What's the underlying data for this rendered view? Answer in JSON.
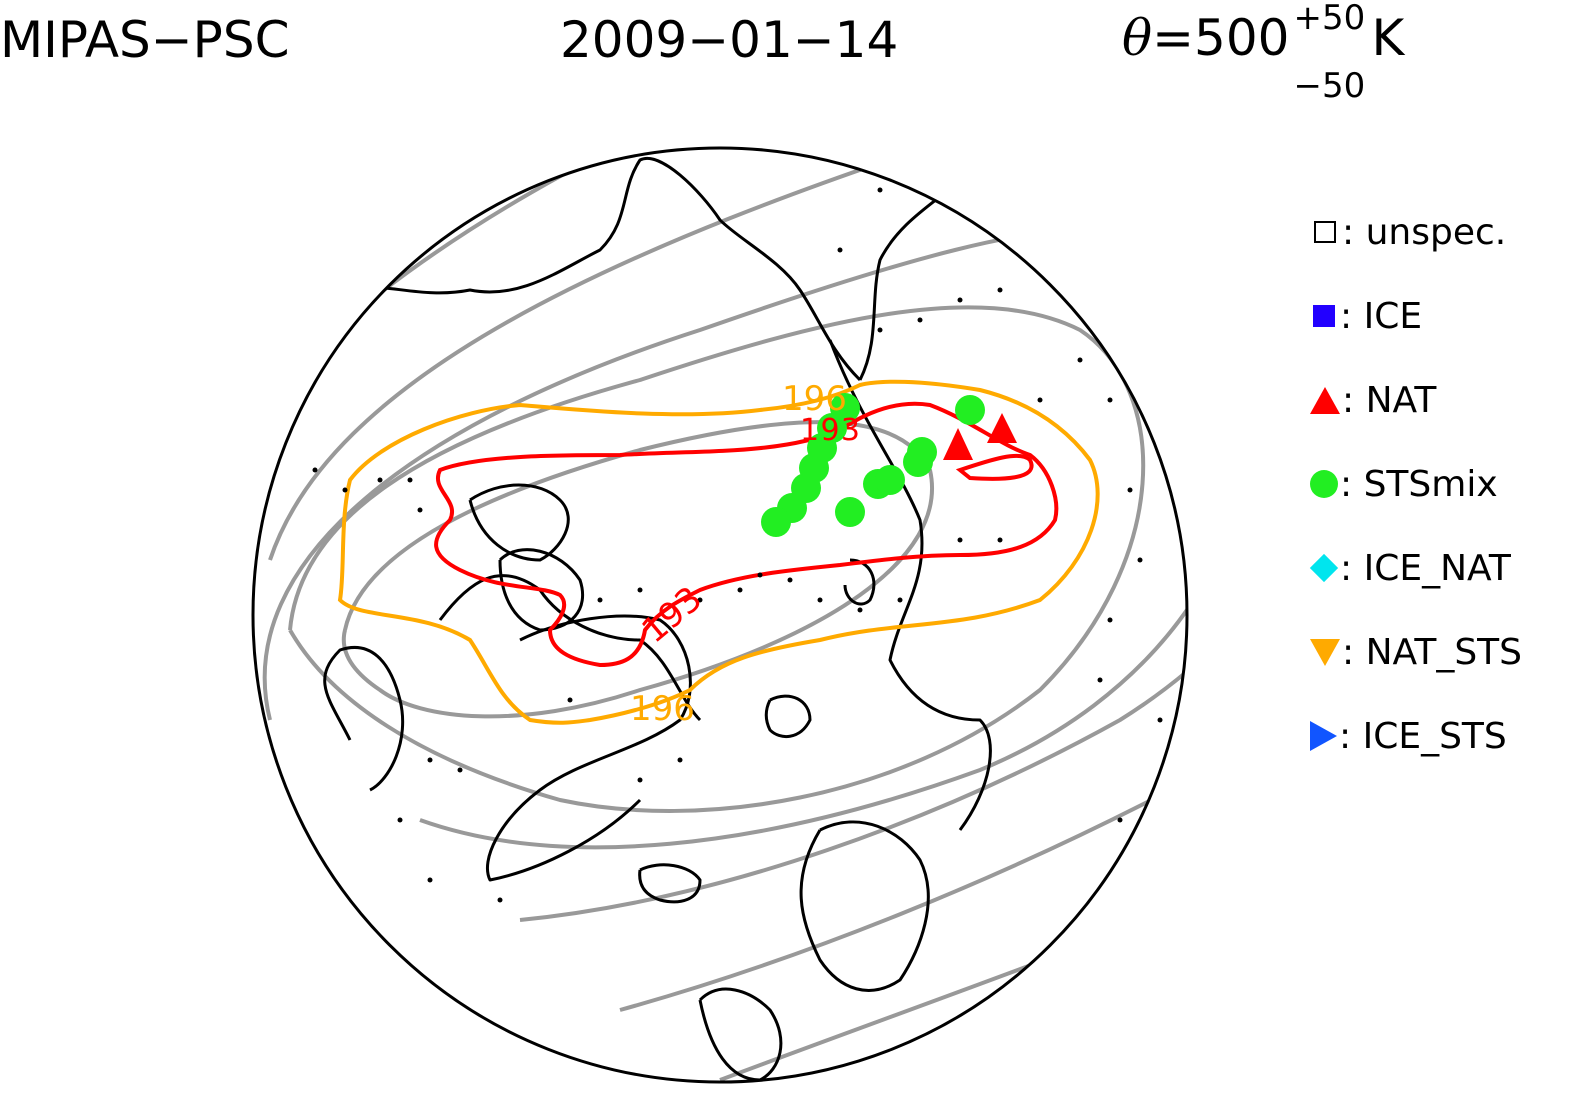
{
  "header": {
    "instrument": "MIPAS−PSC",
    "date": "2009−01−14",
    "theta_symbol": "θ",
    "theta_eq": "=500",
    "theta_plus": "+50",
    "theta_minus": "−50",
    "theta_unit": "K"
  },
  "legend": {
    "items": [
      {
        "key": "unspec",
        "label": ": unspec.",
        "marker": "open-square",
        "color": "#000000"
      },
      {
        "key": "ice",
        "label": ": ICE",
        "marker": "square",
        "color": "#2200ff"
      },
      {
        "key": "nat",
        "label": ": NAT",
        "marker": "triangle-up",
        "color": "#ff0000"
      },
      {
        "key": "stsmix",
        "label": ": STSmix",
        "marker": "circle",
        "color": "#22ee22"
      },
      {
        "key": "ice_nat",
        "label": ": ICE_NAT",
        "marker": "diamond",
        "color": "#00e5ee"
      },
      {
        "key": "nat_sts",
        "label": ": NAT_STS",
        "marker": "triangle-down",
        "color": "#ffaa00"
      },
      {
        "key": "ice_sts",
        "label": ": ICE_STS",
        "marker": "triangle-right",
        "color": "#1155ff"
      }
    ]
  },
  "contours": {
    "red_label": "193",
    "red_label_2": "193",
    "orange_label": "196",
    "orange_label_2": "196",
    "red_color": "#ff0000",
    "orange_color": "#ffaa00",
    "gray_color": "#999999"
  }
}
